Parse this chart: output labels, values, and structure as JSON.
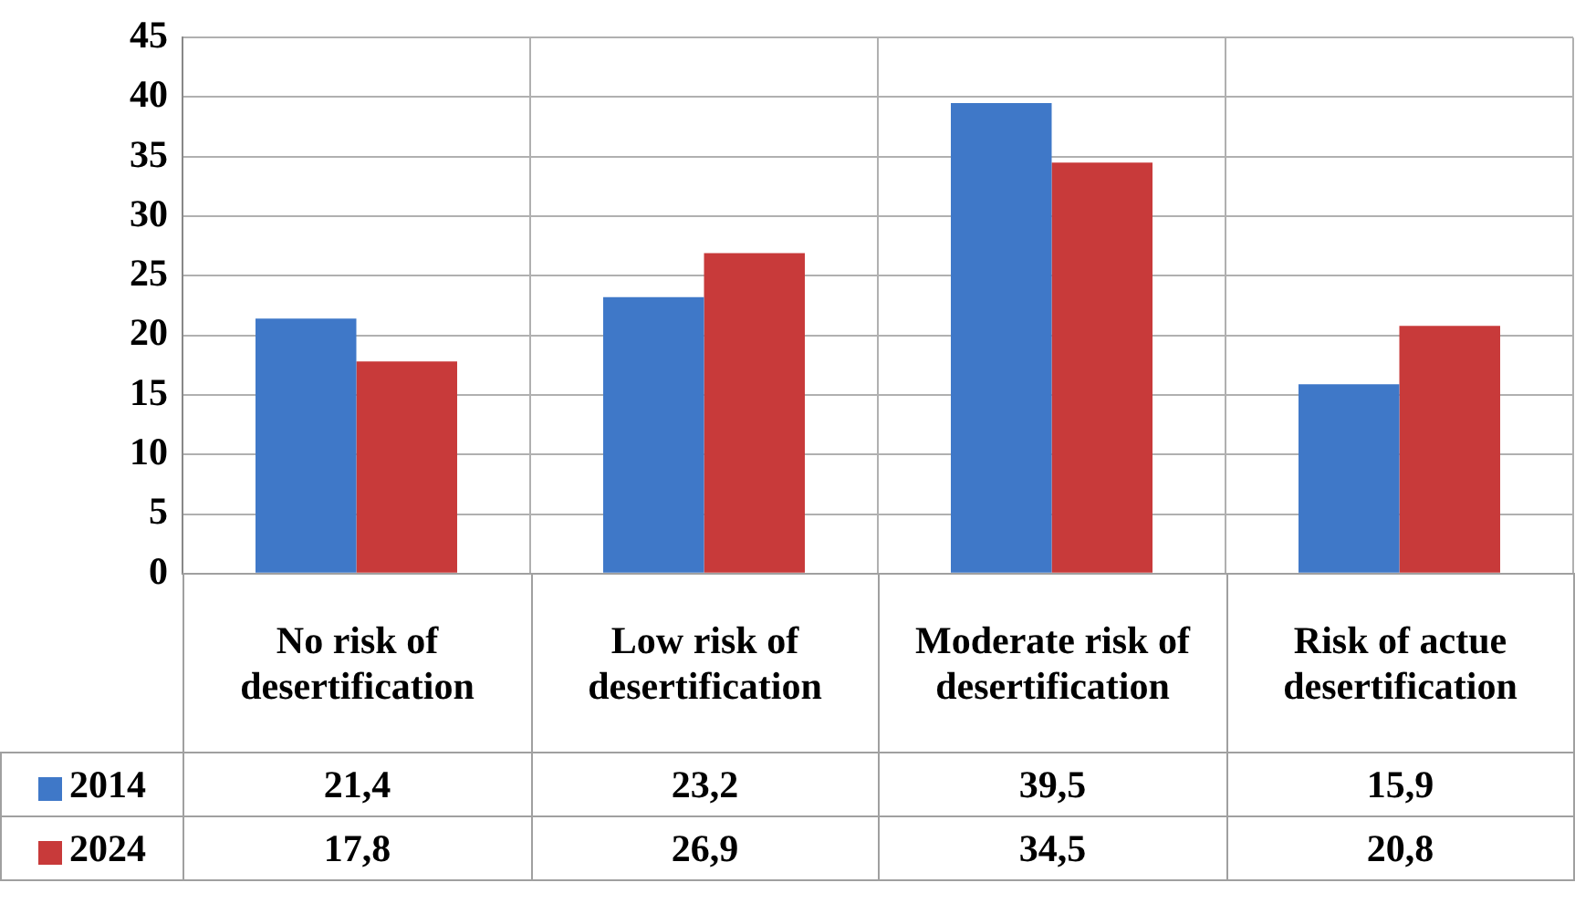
{
  "chart_data": {
    "type": "bar",
    "categories": [
      "No risk of desertification",
      "Low risk of desertification",
      "Moderate risk of desertification",
      "Risk of actue desertification"
    ],
    "series": [
      {
        "name": "2014",
        "color": "#3f78c8",
        "values": [
          21.4,
          23.2,
          39.5,
          15.9
        ],
        "value_labels": [
          "21,4",
          "23,2",
          "39,5",
          "15,9"
        ]
      },
      {
        "name": "2024",
        "color": "#c83a3a",
        "values": [
          17.8,
          26.9,
          34.5,
          20.8
        ],
        "value_labels": [
          "17,8",
          "26,9",
          "34,5",
          "20,8"
        ]
      }
    ],
    "ylim": [
      0,
      45
    ],
    "yticks": [
      0,
      5,
      10,
      15,
      20,
      25,
      30,
      35,
      40,
      45
    ],
    "grid": true,
    "legend": "bottom"
  }
}
